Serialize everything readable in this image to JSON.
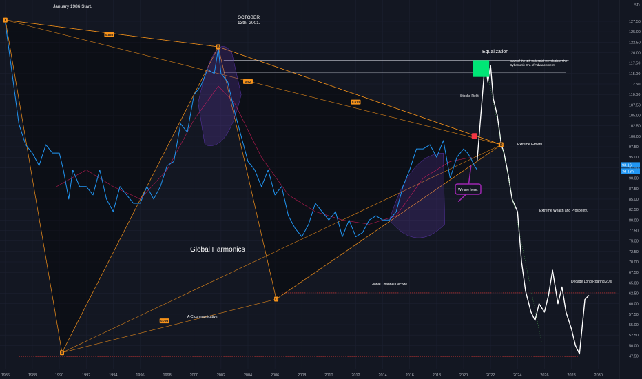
{
  "currency": "USD",
  "chart_data": {
    "type": "line",
    "title": "",
    "xlabel": "",
    "ylabel": "",
    "xlim": [
      1985.6,
      2031.5
    ],
    "ylim": [
      44.3,
      132.6
    ],
    "x_ticks": [
      1986,
      1988,
      1990,
      1992,
      1994,
      1996,
      1998,
      2000,
      2002,
      2004,
      2006,
      2008,
      2010,
      2012,
      2014,
      2016,
      2018,
      2020,
      2022,
      2024,
      2026,
      2028,
      2030
    ],
    "y_ticks": [
      47.5,
      50.0,
      52.5,
      55.0,
      57.5,
      60.0,
      62.5,
      65.0,
      67.5,
      70.0,
      72.5,
      75.0,
      77.5,
      80.0,
      82.5,
      85.0,
      87.5,
      90.0,
      92.5,
      95.0,
      97.5,
      100.0,
      102.5,
      105.0,
      107.5,
      110.0,
      112.5,
      115.0,
      117.5,
      120.0,
      122.5,
      125.0,
      127.5
    ],
    "series": [
      {
        "color": "#2196f3",
        "x": [
          1986.0,
          1986.5,
          1987.0,
          1987.5,
          1988.0,
          1988.5,
          1989.0,
          1989.5,
          1990.0,
          1990.3,
          1990.7,
          1991.0,
          1991.5,
          1992.0,
          1992.5,
          1993.0,
          1993.5,
          1994.0,
          1994.5,
          1995.0,
          1995.5,
          1996.0,
          1996.5,
          1997.0,
          1997.5,
          1998.0,
          1998.5,
          1999.0,
          1999.5,
          2000.0,
          2000.5,
          2001.0,
          2001.5,
          2001.8,
          2002.0,
          2002.5,
          2003.0,
          2003.5,
          2004.0,
          2004.5,
          2005.0,
          2005.5,
          2006.0,
          2006.5,
          2007.0,
          2007.5,
          2008.0,
          2008.5,
          2009.0,
          2009.5,
          2010.0,
          2010.5,
          2011.0,
          2011.5,
          2012.0,
          2012.5,
          2013.0,
          2013.5,
          2014.0,
          2014.5,
          2015.0,
          2015.5,
          2016.0,
          2016.5,
          2017.0,
          2017.5,
          2018.0,
          2018.5,
          2019.0,
          2019.5,
          2020.0,
          2020.3,
          2020.5,
          2020.8,
          2021.0
        ],
        "values": [
          127,
          115,
          103,
          98,
          96,
          93,
          98,
          96,
          96,
          92,
          85,
          92,
          88,
          88,
          86,
          92,
          85,
          82,
          88,
          86,
          84,
          84,
          88,
          85,
          88,
          93,
          94,
          103,
          101,
          110,
          112,
          116,
          115,
          121,
          115,
          113,
          106,
          100,
          94,
          92,
          88,
          92,
          86,
          88,
          81,
          78,
          76,
          79,
          84,
          82,
          80,
          82,
          76,
          80,
          76,
          77,
          80,
          81,
          80,
          80,
          82,
          88,
          92,
          97,
          97,
          98,
          95,
          99,
          90,
          95,
          97,
          96,
          95,
          93,
          92
        ]
      },
      {
        "color": "#ffffff",
        "x": [
          2021.0,
          2021.2,
          2021.4,
          2021.6,
          2021.8,
          2022.0,
          2022.2,
          2022.5,
          2022.8,
          2023.0,
          2023.3,
          2023.6,
          2024.0,
          2024.3,
          2024.6,
          2025.0,
          2025.3,
          2025.6,
          2026.0,
          2026.3,
          2026.6,
          2027.0,
          2027.3,
          2027.6,
          2028.0,
          2028.3,
          2028.6,
          2029.0,
          2029.3
        ],
        "values": [
          94,
          102,
          110,
          118,
          113,
          117,
          109,
          105,
          98,
          96,
          91,
          85,
          82,
          70,
          63,
          58,
          56,
          60,
          58,
          62,
          68,
          60,
          64,
          58,
          54,
          50,
          48,
          61,
          62
        ]
      }
    ],
    "harmonic_points": [
      {
        "label": "X",
        "x": 1986.0,
        "y": 127.8
      },
      {
        "label": "A",
        "x": 1990.2,
        "y": 48.3
      },
      {
        "label": "B",
        "x": 2001.8,
        "y": 121.4
      },
      {
        "label": "C",
        "x": 2006.1,
        "y": 61.1
      },
      {
        "label": "D",
        "x": 2022.8,
        "y": 98.0
      }
    ],
    "ratios": [
      {
        "label": "0.855",
        "x": 1993.7,
        "y": 124.3
      },
      {
        "label": "0.62",
        "x": 2004.0,
        "y": 113.1
      },
      {
        "label": "0.613",
        "x": 2012.0,
        "y": 108.2
      },
      {
        "label": "0.798",
        "x": 1997.8,
        "y": 55.9
      }
    ],
    "markers": {
      "red": {
        "x": 2020.8,
        "y": 100.1
      },
      "green_zone": {
        "x0": 2020.7,
        "x1": 2021.9,
        "y0": 114.2,
        "y1": 118.2
      }
    },
    "level_lines": [
      {
        "y": 118.2,
        "x0": 2002.2,
        "x1": 2027.8,
        "color": "#c8cbd4"
      },
      {
        "y": 115.3,
        "x0": 2002.2,
        "x1": 2027.6,
        "color": "#c8cbd4"
      },
      {
        "y": 62.6,
        "x0": 2006.5,
        "x1": 2031.4,
        "color": "#e53935"
      },
      {
        "y": 47.4,
        "x0": 1987.0,
        "x1": 2028.5,
        "color": "#e53935"
      }
    ],
    "price_labels": [
      {
        "value": "93.16",
        "y": 93.16,
        "color": "#2196f3"
      },
      {
        "value": "3d 13h",
        "y": 91.7,
        "color": "#2196f3"
      }
    ],
    "annotations": {
      "start": "January 1986 Start.",
      "october_line1": "OCTOBER",
      "october_line2": "13th, 2001.",
      "equalization": "Equalization",
      "revolution_line1": "Start of the 4th Industrial Revolution: The",
      "revolution_line2": "Cybernetic Era of Advancement",
      "stocks_rekt": "Stocks Rekt.",
      "extreme_growth": "Extreme Growth.",
      "we_are_here": "We are here.",
      "extreme_wealth": "Extreme Wealth and Prosperity.",
      "global_harmonics": "Global Harmonics",
      "channel_decode": "Global Channel Decode.",
      "decade_roaring": "Decade Long Roaring 20's.",
      "ac_communicative": "A-C communicative."
    }
  }
}
